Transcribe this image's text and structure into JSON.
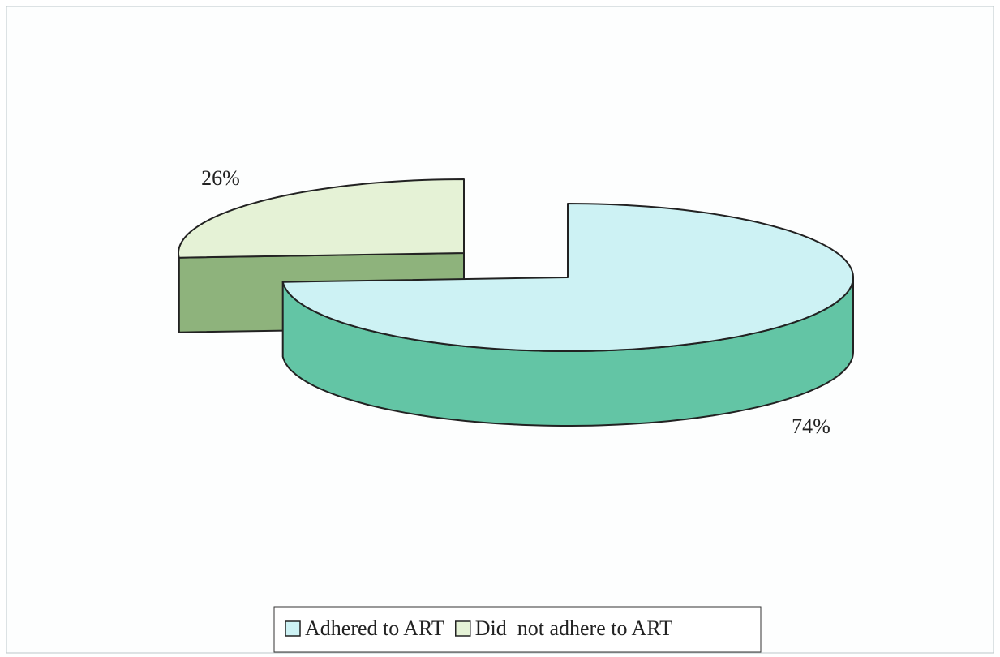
{
  "chart_data": {
    "type": "pie3d",
    "categories": [
      "Adhered to ART",
      "Did  not adhere to ART"
    ],
    "values": [
      74,
      26
    ],
    "value_labels": [
      "74%",
      "26%"
    ],
    "colors": [
      "#cdf2f4",
      "#e5f2d6"
    ],
    "side_colors": [
      "#63c5a5",
      "#8eb37c"
    ],
    "legend": "bottom"
  }
}
